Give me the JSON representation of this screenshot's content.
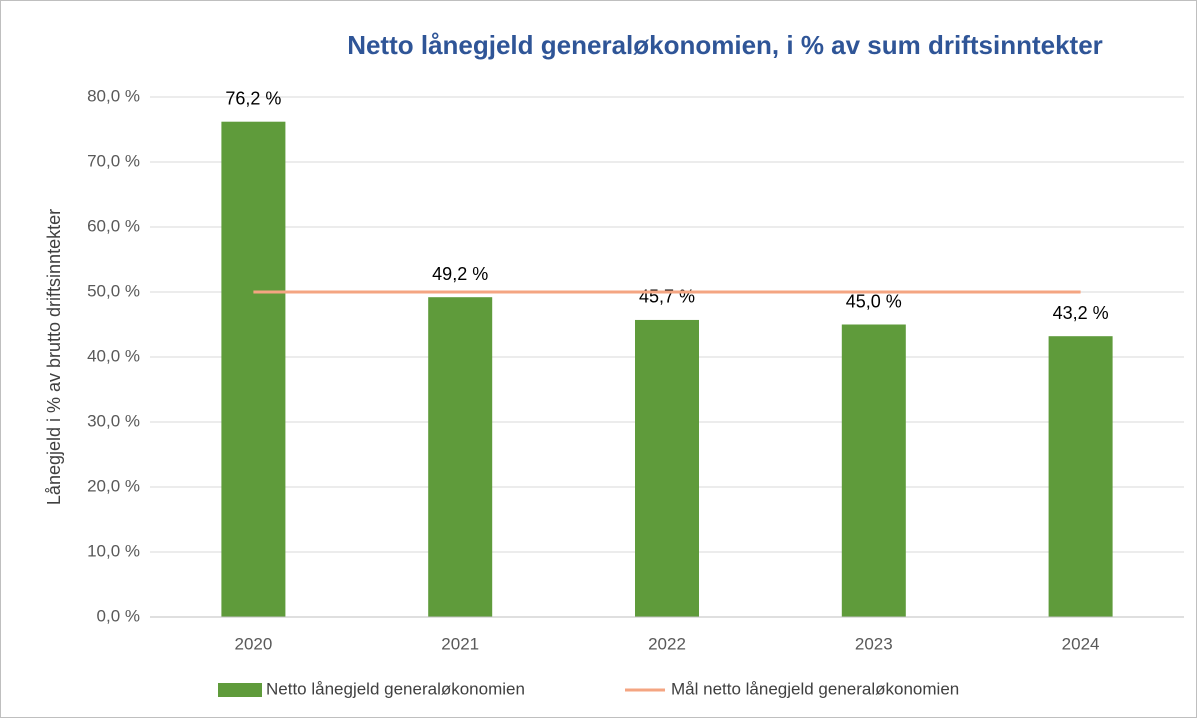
{
  "chart_data": {
    "type": "bar",
    "title": "Netto lånegjeld generaløkonomien, i % av sum driftsinntekter",
    "y_label": "Lånegjeld i % av brutto driftsinntekter",
    "categories": [
      "2020",
      "2021",
      "2022",
      "2023",
      "2024"
    ],
    "series": [
      {
        "name": "Netto lånegjeld generaløkonomien",
        "type": "bar",
        "color": "#5f9b3b",
        "values": [
          76.2,
          49.2,
          45.7,
          45.0,
          43.2
        ],
        "value_labels": [
          "76,2 %",
          "49,2 %",
          "45,7 %",
          "45,0 %",
          "43,2 %"
        ]
      },
      {
        "name": "Mål  netto lånegjeld generaløkonomien",
        "type": "line",
        "color": "#f4a582",
        "values": [
          50,
          50,
          50,
          50,
          50
        ]
      }
    ],
    "ylim": [
      0,
      80
    ],
    "yticks": [
      {
        "value": 0,
        "label": "0,0 %"
      },
      {
        "value": 10,
        "label": "10,0 %"
      },
      {
        "value": 20,
        "label": "20,0 %"
      },
      {
        "value": 30,
        "label": "30,0 %"
      },
      {
        "value": 40,
        "label": "40,0 %"
      },
      {
        "value": 50,
        "label": "50,0 %"
      },
      {
        "value": 60,
        "label": "60,0 %"
      },
      {
        "value": 70,
        "label": "70,0 %"
      },
      {
        "value": 80,
        "label": "80,0 %"
      }
    ],
    "grid": true,
    "legend": "bottom"
  }
}
